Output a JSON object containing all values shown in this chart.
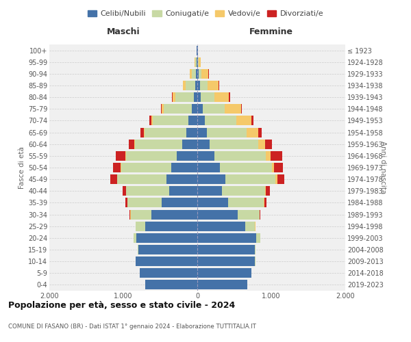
{
  "age_groups": [
    "0-4",
    "5-9",
    "10-14",
    "15-19",
    "20-24",
    "25-29",
    "30-34",
    "35-39",
    "40-44",
    "45-49",
    "50-54",
    "55-59",
    "60-64",
    "65-69",
    "70-74",
    "75-79",
    "80-84",
    "85-89",
    "90-94",
    "95-99",
    "100+"
  ],
  "birth_years": [
    "2019-2023",
    "2014-2018",
    "2009-2013",
    "2004-2008",
    "1999-2003",
    "1994-1998",
    "1989-1993",
    "1984-1988",
    "1979-1983",
    "1974-1978",
    "1969-1973",
    "1964-1968",
    "1959-1963",
    "1954-1958",
    "1949-1953",
    "1944-1948",
    "1939-1943",
    "1934-1938",
    "1929-1933",
    "1924-1928",
    "≤ 1923"
  ],
  "maschi": {
    "celibi": [
      700,
      780,
      830,
      800,
      820,
      700,
      620,
      480,
      380,
      420,
      350,
      280,
      200,
      150,
      120,
      70,
      50,
      30,
      20,
      10,
      5
    ],
    "coniugati": [
      0,
      0,
      5,
      5,
      40,
      130,
      280,
      460,
      580,
      660,
      680,
      680,
      640,
      560,
      480,
      380,
      250,
      130,
      50,
      15,
      3
    ],
    "vedovi": [
      0,
      0,
      0,
      0,
      0,
      2,
      3,
      3,
      3,
      5,
      5,
      8,
      10,
      15,
      20,
      30,
      35,
      30,
      30,
      8,
      2
    ],
    "divorziati": [
      0,
      0,
      0,
      0,
      3,
      5,
      10,
      25,
      50,
      90,
      100,
      130,
      80,
      40,
      30,
      10,
      8,
      5,
      3,
      0,
      0
    ]
  },
  "femmine": {
    "celibi": [
      680,
      730,
      780,
      780,
      800,
      650,
      550,
      420,
      330,
      380,
      310,
      230,
      170,
      130,
      100,
      70,
      50,
      35,
      20,
      10,
      5
    ],
    "coniugati": [
      0,
      0,
      5,
      10,
      50,
      130,
      290,
      480,
      590,
      680,
      700,
      700,
      650,
      540,
      430,
      300,
      180,
      100,
      40,
      10,
      2
    ],
    "vedovi": [
      0,
      0,
      0,
      0,
      0,
      3,
      5,
      8,
      10,
      20,
      30,
      60,
      100,
      150,
      200,
      220,
      200,
      150,
      90,
      25,
      5
    ],
    "divorziati": [
      0,
      0,
      0,
      0,
      0,
      5,
      10,
      25,
      55,
      100,
      120,
      160,
      90,
      50,
      30,
      15,
      10,
      8,
      5,
      0,
      0
    ]
  },
  "colors": {
    "celibi": "#4472a8",
    "coniugati": "#c8d9a4",
    "vedovi": "#f5c96a",
    "divorziati": "#cc2222"
  },
  "legend_labels": [
    "Celibi/Nubili",
    "Coniugati/e",
    "Vedovi/e",
    "Divorziati/e"
  ],
  "title": "Popolazione per età, sesso e stato civile - 2024",
  "subtitle": "COMUNE DI FASANO (BR) - Dati ISTAT 1° gennaio 2024 - Elaborazione TUTTITALIA.IT",
  "xlabel_left": "Maschi",
  "xlabel_right": "Femmine",
  "ylabel_left": "Fasce di età",
  "ylabel_right": "Anni di nascita",
  "xlim": 2000,
  "bg_color": "#ffffff",
  "plot_bg_color": "#f0f0f0",
  "grid_color": "#cccccc"
}
